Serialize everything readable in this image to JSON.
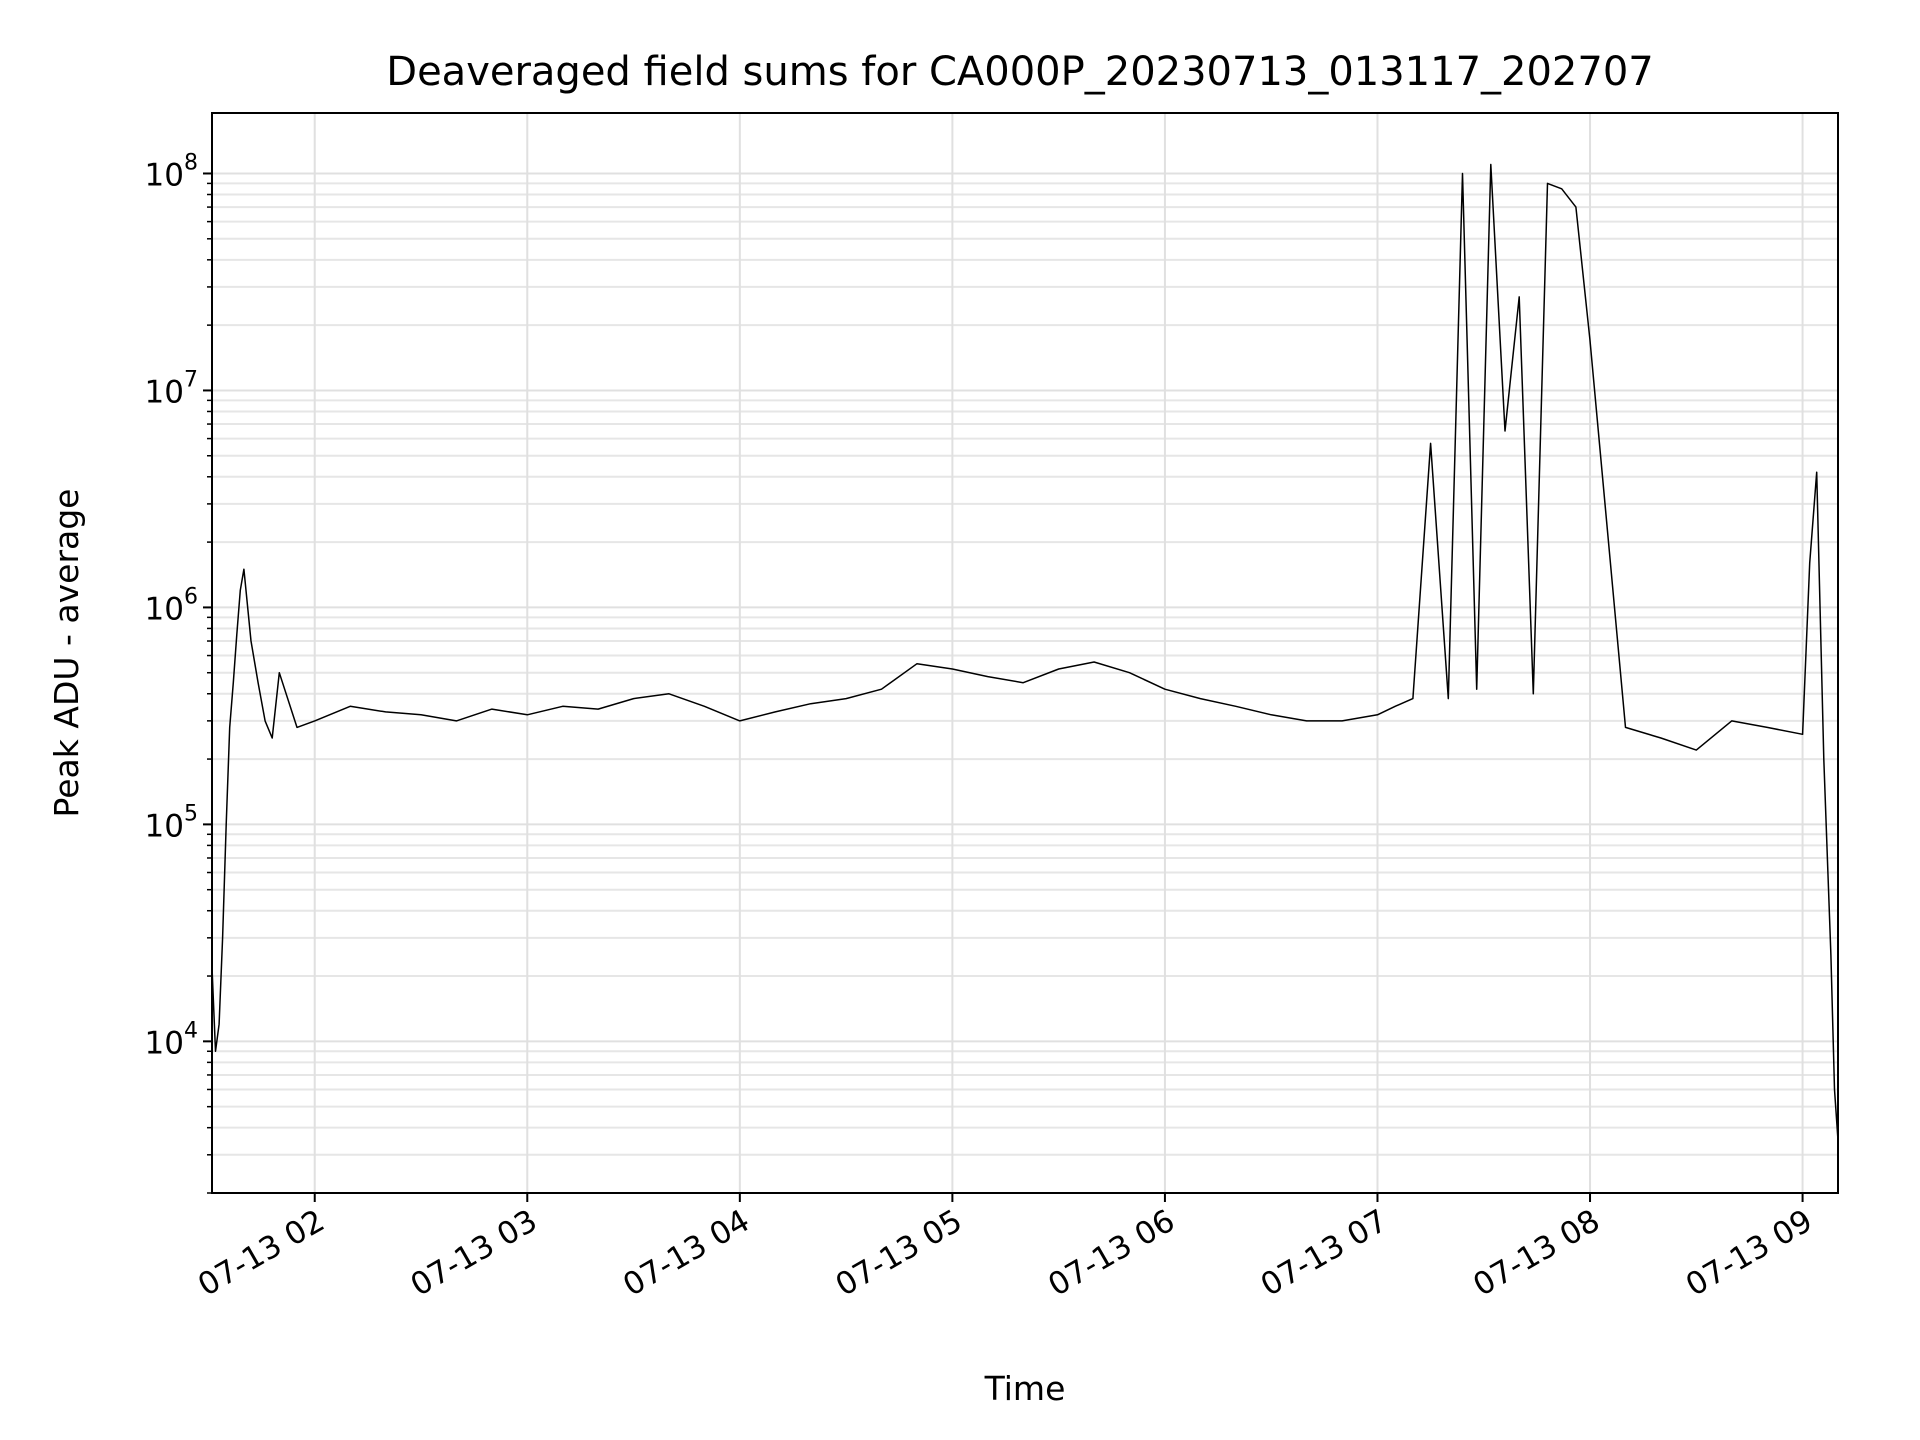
{
  "chart_data": {
    "type": "line",
    "title": "Deaveraged field sums for CA000P_20230713_013117_202707",
    "xlabel": "Time",
    "ylabel": "Peak ADU - average",
    "yscale": "log",
    "ylim": [
      2000,
      190000000
    ],
    "xlim": [
      "07-13 01:31",
      "07-13 09:10"
    ],
    "x_ticks": [
      "07-13 02",
      "07-13 03",
      "07-13 04",
      "07-13 05",
      "07-13 06",
      "07-13 07",
      "07-13 08",
      "07-13 09"
    ],
    "y_ticks": [
      {
        "base": "10",
        "exp": "4",
        "value": 10000
      },
      {
        "base": "10",
        "exp": "5",
        "value": 100000
      },
      {
        "base": "10",
        "exp": "6",
        "value": 1000000
      },
      {
        "base": "10",
        "exp": "7",
        "value": 10000000
      },
      {
        "base": "10",
        "exp": "8",
        "value": 100000000
      }
    ],
    "grid": true,
    "line_color": "#000000",
    "series": [
      {
        "x": [
          "07-13 01:31",
          "07-13 01:32",
          "07-13 01:33",
          "07-13 01:34",
          "07-13 01:35",
          "07-13 01:36",
          "07-13 01:37",
          "07-13 01:38",
          "07-13 01:39",
          "07-13 01:40",
          "07-13 01:42",
          "07-13 01:44",
          "07-13 01:46",
          "07-13 01:48",
          "07-13 01:50",
          "07-13 01:55",
          "07-13 02:00",
          "07-13 02:10",
          "07-13 02:20",
          "07-13 02:30",
          "07-13 02:40",
          "07-13 02:50",
          "07-13 03:00",
          "07-13 03:10",
          "07-13 03:20",
          "07-13 03:30",
          "07-13 03:40",
          "07-13 03:50",
          "07-13 04:00",
          "07-13 04:10",
          "07-13 04:20",
          "07-13 04:30",
          "07-13 04:40",
          "07-13 04:50",
          "07-13 05:00",
          "07-13 05:10",
          "07-13 05:20",
          "07-13 05:30",
          "07-13 05:40",
          "07-13 05:50",
          "07-13 06:00",
          "07-13 06:10",
          "07-13 06:20",
          "07-13 06:30",
          "07-13 06:40",
          "07-13 06:50",
          "07-13 07:00",
          "07-13 07:05",
          "07-13 07:10",
          "07-13 07:15",
          "07-13 07:20",
          "07-13 07:24",
          "07-13 07:28",
          "07-13 07:32",
          "07-13 07:36",
          "07-13 07:40",
          "07-13 07:44",
          "07-13 07:48",
          "07-13 07:52",
          "07-13 07:56",
          "07-13 08:00",
          "07-13 08:10",
          "07-13 08:20",
          "07-13 08:30",
          "07-13 08:40",
          "07-13 08:50",
          "07-13 09:00",
          "07-13 09:02",
          "07-13 09:04",
          "07-13 09:06",
          "07-13 09:08",
          "07-13 09:09",
          "07-13 09:10"
        ],
        "y": [
          22000,
          9000,
          12000,
          30000,
          100000,
          280000,
          450000,
          750000,
          1200000,
          1500000,
          700000,
          450000,
          300000,
          250000,
          500000,
          280000,
          300000,
          350000,
          330000,
          320000,
          300000,
          340000,
          320000,
          350000,
          340000,
          380000,
          400000,
          350000,
          300000,
          330000,
          360000,
          380000,
          420000,
          550000,
          520000,
          480000,
          450000,
          520000,
          560000,
          500000,
          420000,
          380000,
          350000,
          320000,
          300000,
          300000,
          320000,
          350000,
          380000,
          5700000,
          380000,
          100000000,
          420000,
          110000000,
          6500000,
          27000000,
          400000,
          90000000,
          85000000,
          70000000,
          17000000,
          280000,
          250000,
          220000,
          300000,
          280000,
          260000,
          1600000,
          4200000,
          200000,
          25000,
          6000,
          3500
        ]
      }
    ]
  }
}
